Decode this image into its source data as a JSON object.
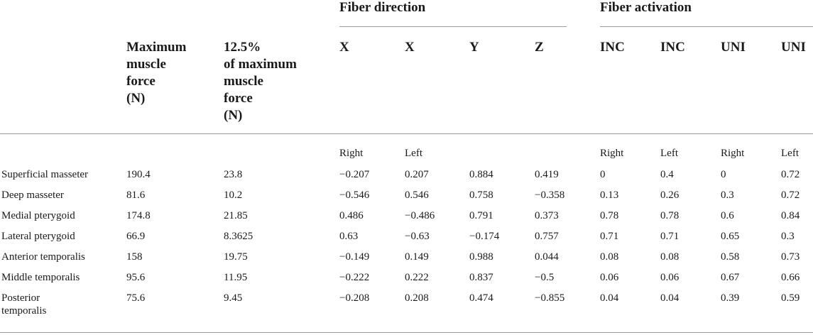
{
  "groups": {
    "fiber_direction": "Fiber direction",
    "fiber_activation": "Fiber activation"
  },
  "columns": {
    "max_force": [
      "Maximum",
      "muscle",
      "force",
      "(N)"
    ],
    "pct_force": [
      "12.5%",
      "of maximum",
      "muscle",
      "force",
      "(N)"
    ],
    "dir_x1": "X",
    "dir_x2": "X",
    "dir_y": "Y",
    "dir_z": "Z",
    "act_inc1": "INC",
    "act_inc2": "INC",
    "act_uni1": "UNI",
    "act_uni2": "UNI"
  },
  "subheaders": {
    "dir_x1": "Right",
    "dir_x2": "Left",
    "act_inc1": "Right",
    "act_inc2": "Left",
    "act_uni1": "Right",
    "act_uni2": "Left"
  },
  "rows": [
    {
      "name": "Superficial masseter",
      "max": "190.4",
      "pct": "23.8",
      "x_r": "−0.207",
      "x_l": "0.207",
      "y": "0.884",
      "z": "0.419",
      "inc_r": "0",
      "inc_l": "0.4",
      "uni_r": "0",
      "uni_l": "0.72"
    },
    {
      "name": "Deep masseter",
      "max": "81.6",
      "pct": "10.2",
      "x_r": "−0.546",
      "x_l": "0.546",
      "y": "0.758",
      "z": "−0.358",
      "inc_r": "0.13",
      "inc_l": "0.26",
      "uni_r": "0.3",
      "uni_l": "0.72"
    },
    {
      "name": "Medial pterygoid",
      "max": "174.8",
      "pct": "21.85",
      "x_r": "0.486",
      "x_l": "−0.486",
      "y": "0.791",
      "z": "0.373",
      "inc_r": "0.78",
      "inc_l": "0.78",
      "uni_r": "0.6",
      "uni_l": "0.84"
    },
    {
      "name": "Lateral pterygoid",
      "max": "66.9",
      "pct": "8.3625",
      "x_r": "0.63",
      "x_l": "−0.63",
      "y": "−0.174",
      "z": "0.757",
      "inc_r": "0.71",
      "inc_l": "0.71",
      "uni_r": "0.65",
      "uni_l": "0.3"
    },
    {
      "name": "Anterior temporalis",
      "max": "158",
      "pct": "19.75",
      "x_r": "−0.149",
      "x_l": "0.149",
      "y": "0.988",
      "z": "0.044",
      "inc_r": "0.08",
      "inc_l": "0.08",
      "uni_r": "0.58",
      "uni_l": "0.73"
    },
    {
      "name": "Middle temporalis",
      "max": "95.6",
      "pct": "11.95",
      "x_r": "−0.222",
      "x_l": "0.222",
      "y": "0.837",
      "z": "−0.5",
      "inc_r": "0.06",
      "inc_l": "0.06",
      "uni_r": "0.67",
      "uni_l": "0.66"
    },
    {
      "name": "Posterior temporalis",
      "max": "75.6",
      "pct": "9.45",
      "x_r": "−0.208",
      "x_l": "0.208",
      "y": "0.474",
      "z": "−0.855",
      "inc_r": "0.04",
      "inc_l": "0.04",
      "uni_r": "0.39",
      "uni_l": "0.59"
    }
  ]
}
